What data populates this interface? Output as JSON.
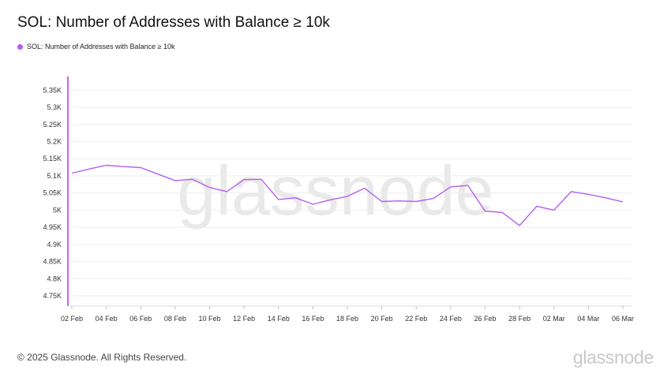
{
  "title": "SOL: Number of Addresses with Balance ≥ 10k",
  "footer": {
    "copyright": "© 2025 Glassnode. All Rights Reserved.",
    "logo": "glassnode"
  },
  "watermark": "glassnode",
  "colors": {
    "series": "#b45ef0",
    "axis": "#c864f0",
    "grid": "#eeeeee"
  },
  "chart_data": {
    "type": "line",
    "title": "SOL: Number of Addresses with Balance ≥ 10k",
    "xlabel": "",
    "ylabel": "",
    "ylim": [
      4720,
      5390
    ],
    "y_ticks": [
      4750,
      4800,
      4850,
      4900,
      4950,
      5000,
      5050,
      5100,
      5150,
      5200,
      5250,
      5300,
      5350
    ],
    "y_tick_labels": [
      "4.75K",
      "4.8K",
      "4.85K",
      "4.9K",
      "4.95K",
      "5K",
      "5.05K",
      "5.1K",
      "5.15K",
      "5.2K",
      "5.25K",
      "5.3K",
      "5.35K"
    ],
    "x_tick_labels": [
      "02 Feb",
      "04 Feb",
      "06 Feb",
      "08 Feb",
      "10 Feb",
      "12 Feb",
      "14 Feb",
      "16 Feb",
      "18 Feb",
      "20 Feb",
      "22 Feb",
      "24 Feb",
      "26 Feb",
      "28 Feb",
      "02 Mar",
      "04 Mar",
      "06 Mar"
    ],
    "grid": true,
    "legend": "top-left",
    "series": [
      {
        "name": "SOL: Number of Addresses with Balance ≥ 10k",
        "x": [
          "02 Feb",
          "03 Feb",
          "04 Feb",
          "05 Feb",
          "06 Feb",
          "07 Feb",
          "08 Feb",
          "09 Feb",
          "10 Feb",
          "11 Feb",
          "12 Feb",
          "13 Feb",
          "14 Feb",
          "15 Feb",
          "16 Feb",
          "17 Feb",
          "18 Feb",
          "19 Feb",
          "20 Feb",
          "21 Feb",
          "22 Feb",
          "23 Feb",
          "24 Feb",
          "25 Feb",
          "26 Feb",
          "27 Feb",
          "28 Feb",
          "01 Mar",
          "02 Mar",
          "03 Mar",
          "04 Mar",
          "05 Mar",
          "06 Mar"
        ],
        "values": [
          5108,
          5120,
          5131,
          5127,
          5124,
          5105,
          5086,
          5090,
          5066,
          5054,
          5089,
          5090,
          5031,
          5036,
          5017,
          5030,
          5040,
          5064,
          5025,
          5027,
          5025,
          5034,
          5068,
          5072,
          4997,
          4993,
          4955,
          5011,
          5000,
          5054,
          5046,
          5036,
          5024
        ]
      }
    ]
  }
}
